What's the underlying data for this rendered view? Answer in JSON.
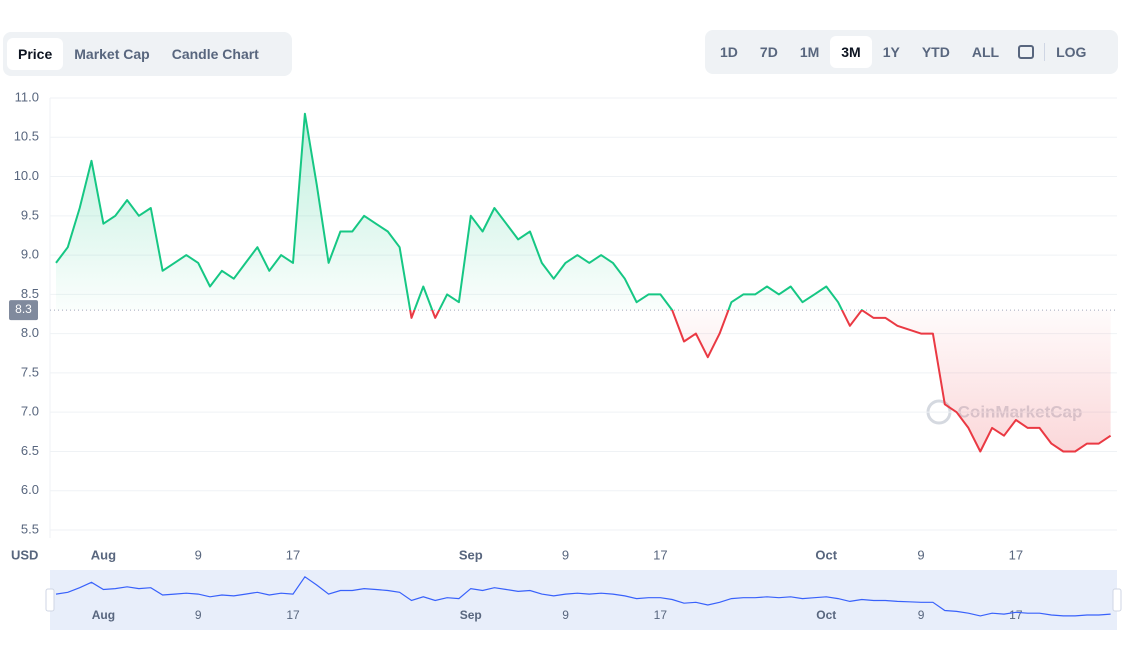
{
  "toolbar": {
    "chart_types": [
      "Price",
      "Market Cap",
      "Candle Chart"
    ],
    "selected_type": 0,
    "ranges": [
      "1D",
      "7D",
      "1M",
      "3M",
      "1Y",
      "YTD",
      "ALL"
    ],
    "selected_range": 3,
    "log": "LOG"
  },
  "watermark": "CoinMarketCap",
  "chart_data": {
    "type": "line",
    "y_unit": "USD",
    "baseline": 8.3,
    "color_up": "#16c784",
    "color_down": "#ea3943",
    "navigator_color": "#3861fb",
    "categories": [
      null,
      null,
      null,
      null,
      "Aug",
      null,
      null,
      null,
      null,
      null,
      null,
      null,
      "9",
      null,
      null,
      null,
      null,
      null,
      null,
      null,
      "17",
      null,
      null,
      null,
      null,
      null,
      null,
      null,
      null,
      null,
      null,
      null,
      null,
      null,
      null,
      "Sep",
      null,
      null,
      null,
      null,
      null,
      null,
      null,
      "9",
      null,
      null,
      null,
      null,
      null,
      null,
      null,
      "17",
      null,
      null,
      null,
      null,
      null,
      null,
      null,
      null,
      null,
      null,
      null,
      null,
      null,
      "Oct",
      null,
      null,
      null,
      null,
      null,
      null,
      null,
      "9",
      null,
      null,
      null,
      null,
      null,
      null,
      null,
      "17",
      null,
      null,
      null,
      null,
      null,
      null,
      null,
      null
    ],
    "values": [
      8.9,
      9.1,
      9.6,
      10.2,
      9.4,
      9.5,
      9.7,
      9.5,
      9.6,
      8.8,
      8.9,
      9.0,
      8.9,
      8.6,
      8.8,
      8.7,
      8.9,
      9.1,
      8.8,
      9.0,
      8.9,
      10.8,
      9.9,
      8.9,
      9.3,
      9.3,
      9.5,
      9.4,
      9.3,
      9.1,
      8.2,
      8.6,
      8.2,
      8.5,
      8.4,
      9.5,
      9.3,
      9.6,
      9.4,
      9.2,
      9.3,
      8.9,
      8.7,
      8.9,
      9.0,
      8.9,
      9.0,
      8.9,
      8.7,
      8.4,
      8.5,
      8.5,
      8.3,
      7.9,
      8.0,
      7.7,
      8.0,
      8.4,
      8.5,
      8.5,
      8.6,
      8.5,
      8.6,
      8.4,
      8.5,
      8.6,
      8.4,
      8.1,
      8.3,
      8.2,
      8.2,
      8.1,
      8.05,
      8.0,
      8.0,
      7.1,
      7.0,
      6.8,
      6.5,
      6.8,
      6.7,
      6.9,
      6.8,
      6.8,
      6.6,
      6.5,
      6.5,
      6.6,
      6.6,
      6.7
    ],
    "ylim": [
      5.5,
      11.0
    ],
    "yticks": [
      {
        "value": 5.5,
        "label": "5.5"
      },
      {
        "value": 6,
        "label": "6.0"
      },
      6.5,
      {
        "value": 7,
        "label": "7.0"
      },
      7.5,
      {
        "value": 8,
        "label": "8.0"
      },
      8.5,
      {
        "value": 9,
        "label": "9.0"
      },
      9.5,
      {
        "value": 10,
        "label": "10.0"
      },
      10.5,
      {
        "value": 11,
        "label": "11.0"
      }
    ],
    "grid": true
  }
}
